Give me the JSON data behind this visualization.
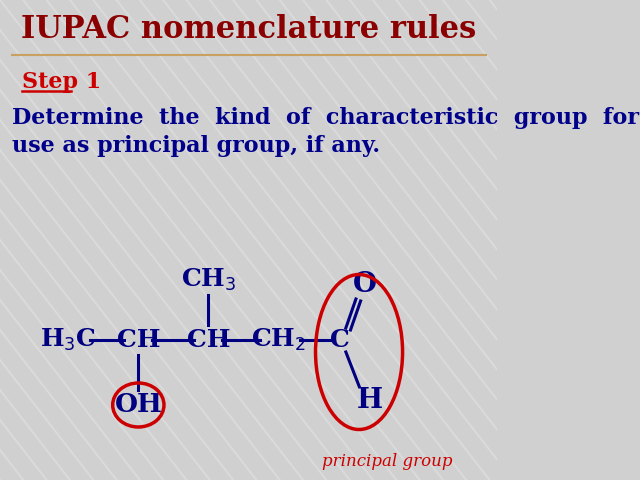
{
  "title": "IUPAC nomenclature rules",
  "title_color": "#8B0000",
  "title_fontsize": 22,
  "step_label": "Step 1",
  "step_color": "#cc0000",
  "step_fontsize": 16,
  "body_text_line1": "Determine  the  kind  of  characteristic  group  for",
  "body_text_line2": "use as principal group, if any.",
  "body_color": "#00008B",
  "body_fontsize": 16,
  "bg_color": "#d0d0d0",
  "line_color": "#c8a060",
  "molecule_color": "#000080",
  "circle_color": "#cc0000",
  "principal_group_color": "#cc0000",
  "principal_group_text": "principal group"
}
